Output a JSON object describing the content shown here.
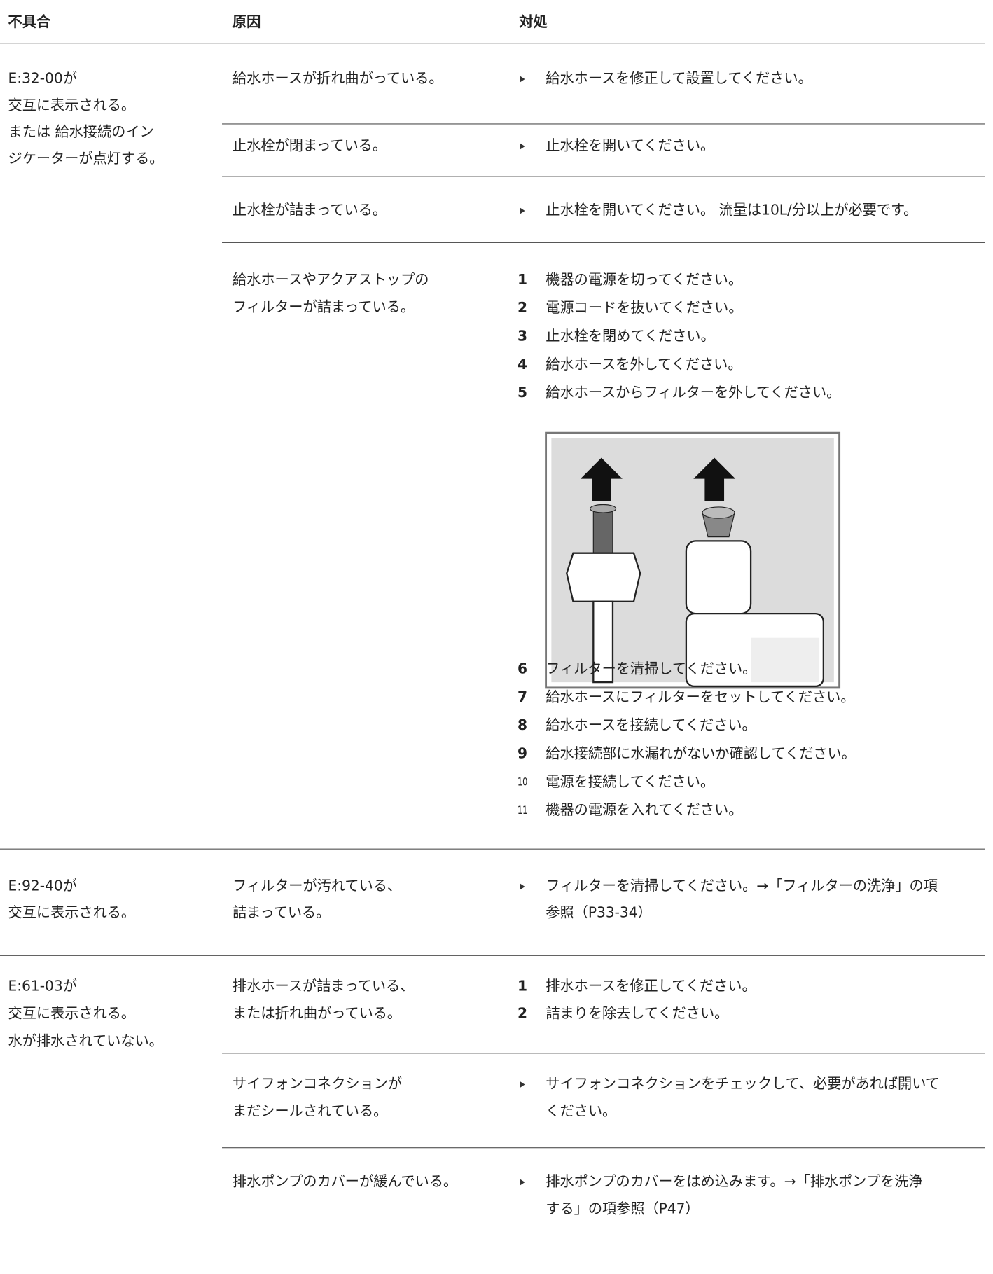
{
  "header": {
    "columns": [
      "不具合",
      "原因",
      "対処"
    ]
  },
  "groups": [
    {
      "problem": [
        "E:32-00が",
        "交互に表示される。",
        "または 給水接続のイン",
        "ジケーターが点灯する。"
      ],
      "rows": [
        {
          "cause": [
            "給水ホースが折れ曲がっている。"
          ],
          "action": [
            "給水ホースを修正して設置してください。"
          ]
        },
        {
          "cause": [
            "止水栓が閉まっている。"
          ],
          "action": [
            "止水栓を開いてください。"
          ]
        },
        {
          "cause": [
            "止水栓が詰まっている。"
          ],
          "action": [
            "止水栓を開いてください。 流量は10L/分以上が必要です。"
          ]
        },
        {
          "cause": [
            "給水ホースやアクアストップの",
            "フィルターが詰まっている。"
          ],
          "steps": [
            {
              "num": "1",
              "text": "機器の電源を切ってください。"
            },
            {
              "num": "2",
              "text": "電源コードを抜いてください。"
            },
            {
              "num": "3",
              "text": "止水栓を閉めてください。"
            },
            {
              "num": "4",
              "text": "給水ホースを外してください。"
            },
            {
              "num": "5",
              "text": "給水ホースからフィルターを外してください。"
            },
            {
              "num": "6",
              "text": "フィルターを清掃してください。"
            },
            {
              "num": "7",
              "text": "給水ホースにフィルターをセットしてください。"
            },
            {
              "num": "8",
              "text": "給水ホースを接続してください。"
            },
            {
              "num": "9",
              "text": "給水接続部に水漏れがないか確認してください。"
            },
            {
              "num": "10",
              "text": "電源を接続してください。"
            },
            {
              "num": "11",
              "text": "機器の電源を入れてください。"
            }
          ]
        }
      ]
    },
    {
      "problem": [
        "E:92-40が",
        "交互に表示される。"
      ],
      "rows": [
        {
          "cause": [
            "フィルターが汚れている、",
            "詰まっている。"
          ],
          "action": [
            "フィルターを清掃してください。→「フィルターの洗浄」の項",
            "参照（P33-34）"
          ]
        }
      ]
    },
    {
      "problem": [
        "E:61-03が",
        "交互に表示される。",
        "水が排水されていない。"
      ],
      "rows": [
        {
          "cause": [
            "排水ホースが詰まっている、",
            "または折れ曲がっている。"
          ],
          "steps": [
            {
              "num": "1",
              "text": "排水ホースを修正してください。"
            },
            {
              "num": "2",
              "text": "詰まりを除去してください。"
            }
          ]
        },
        {
          "cause": [
            "サイフォンコネクションが",
            "まだシールされている。"
          ],
          "action": [
            "サイフォンコネクションをチェックして、必要があれば開いて",
            "ください。"
          ]
        },
        {
          "cause": [
            "排水ポンプのカバーが緩んでいる。"
          ],
          "action": [
            "排水ポンプのカバーをはめ込みます。→「排水ポンプを洗浄",
            "する」の項参照（P47）"
          ]
        }
      ]
    }
  ]
}
